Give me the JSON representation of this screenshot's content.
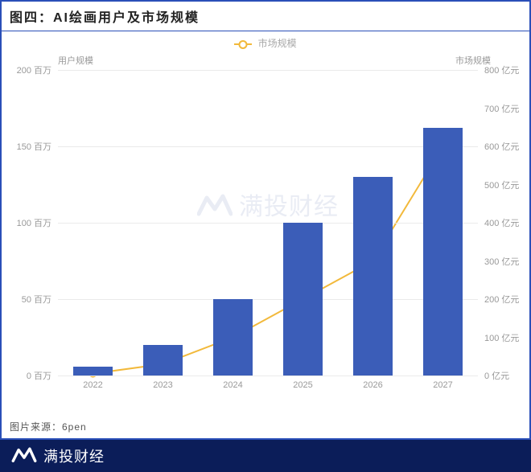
{
  "title": "图四：AI绘画用户及市场规模",
  "legend": {
    "line_label": "市场规模",
    "line_color": "#f2b93b"
  },
  "y_left": {
    "title": "用户规模",
    "unit": "百万",
    "min": 0,
    "max": 200,
    "step": 50,
    "ticks": [
      0,
      50,
      100,
      150,
      200
    ]
  },
  "y_right": {
    "title": "市场规模",
    "unit": "亿元",
    "min": 0,
    "max": 800,
    "step": 100,
    "ticks": [
      0,
      100,
      200,
      300,
      400,
      500,
      600,
      700,
      800
    ]
  },
  "categories": [
    "2022",
    "2023",
    "2024",
    "2025",
    "2026",
    "2027"
  ],
  "bars": {
    "values": [
      6,
      20,
      50,
      100,
      130,
      162
    ],
    "color": "#3b5db8",
    "width_frac": 0.56
  },
  "line": {
    "values": [
      5,
      30,
      100,
      200,
      300,
      600
    ],
    "color": "#f2b93b",
    "marker_border": "#f2b93b",
    "marker_fill": "#ffffff",
    "stroke_width": 2,
    "marker_r": 4
  },
  "grid_color": "#eaeaea",
  "axis_label_color": "#999999",
  "source": "图片来源：6pen",
  "watermark": {
    "text": "满投财经",
    "color": "#7d8cc0"
  },
  "footer": {
    "text": "满投财经",
    "bg": "#0b1d59",
    "logo_stroke": "#ffffff"
  }
}
